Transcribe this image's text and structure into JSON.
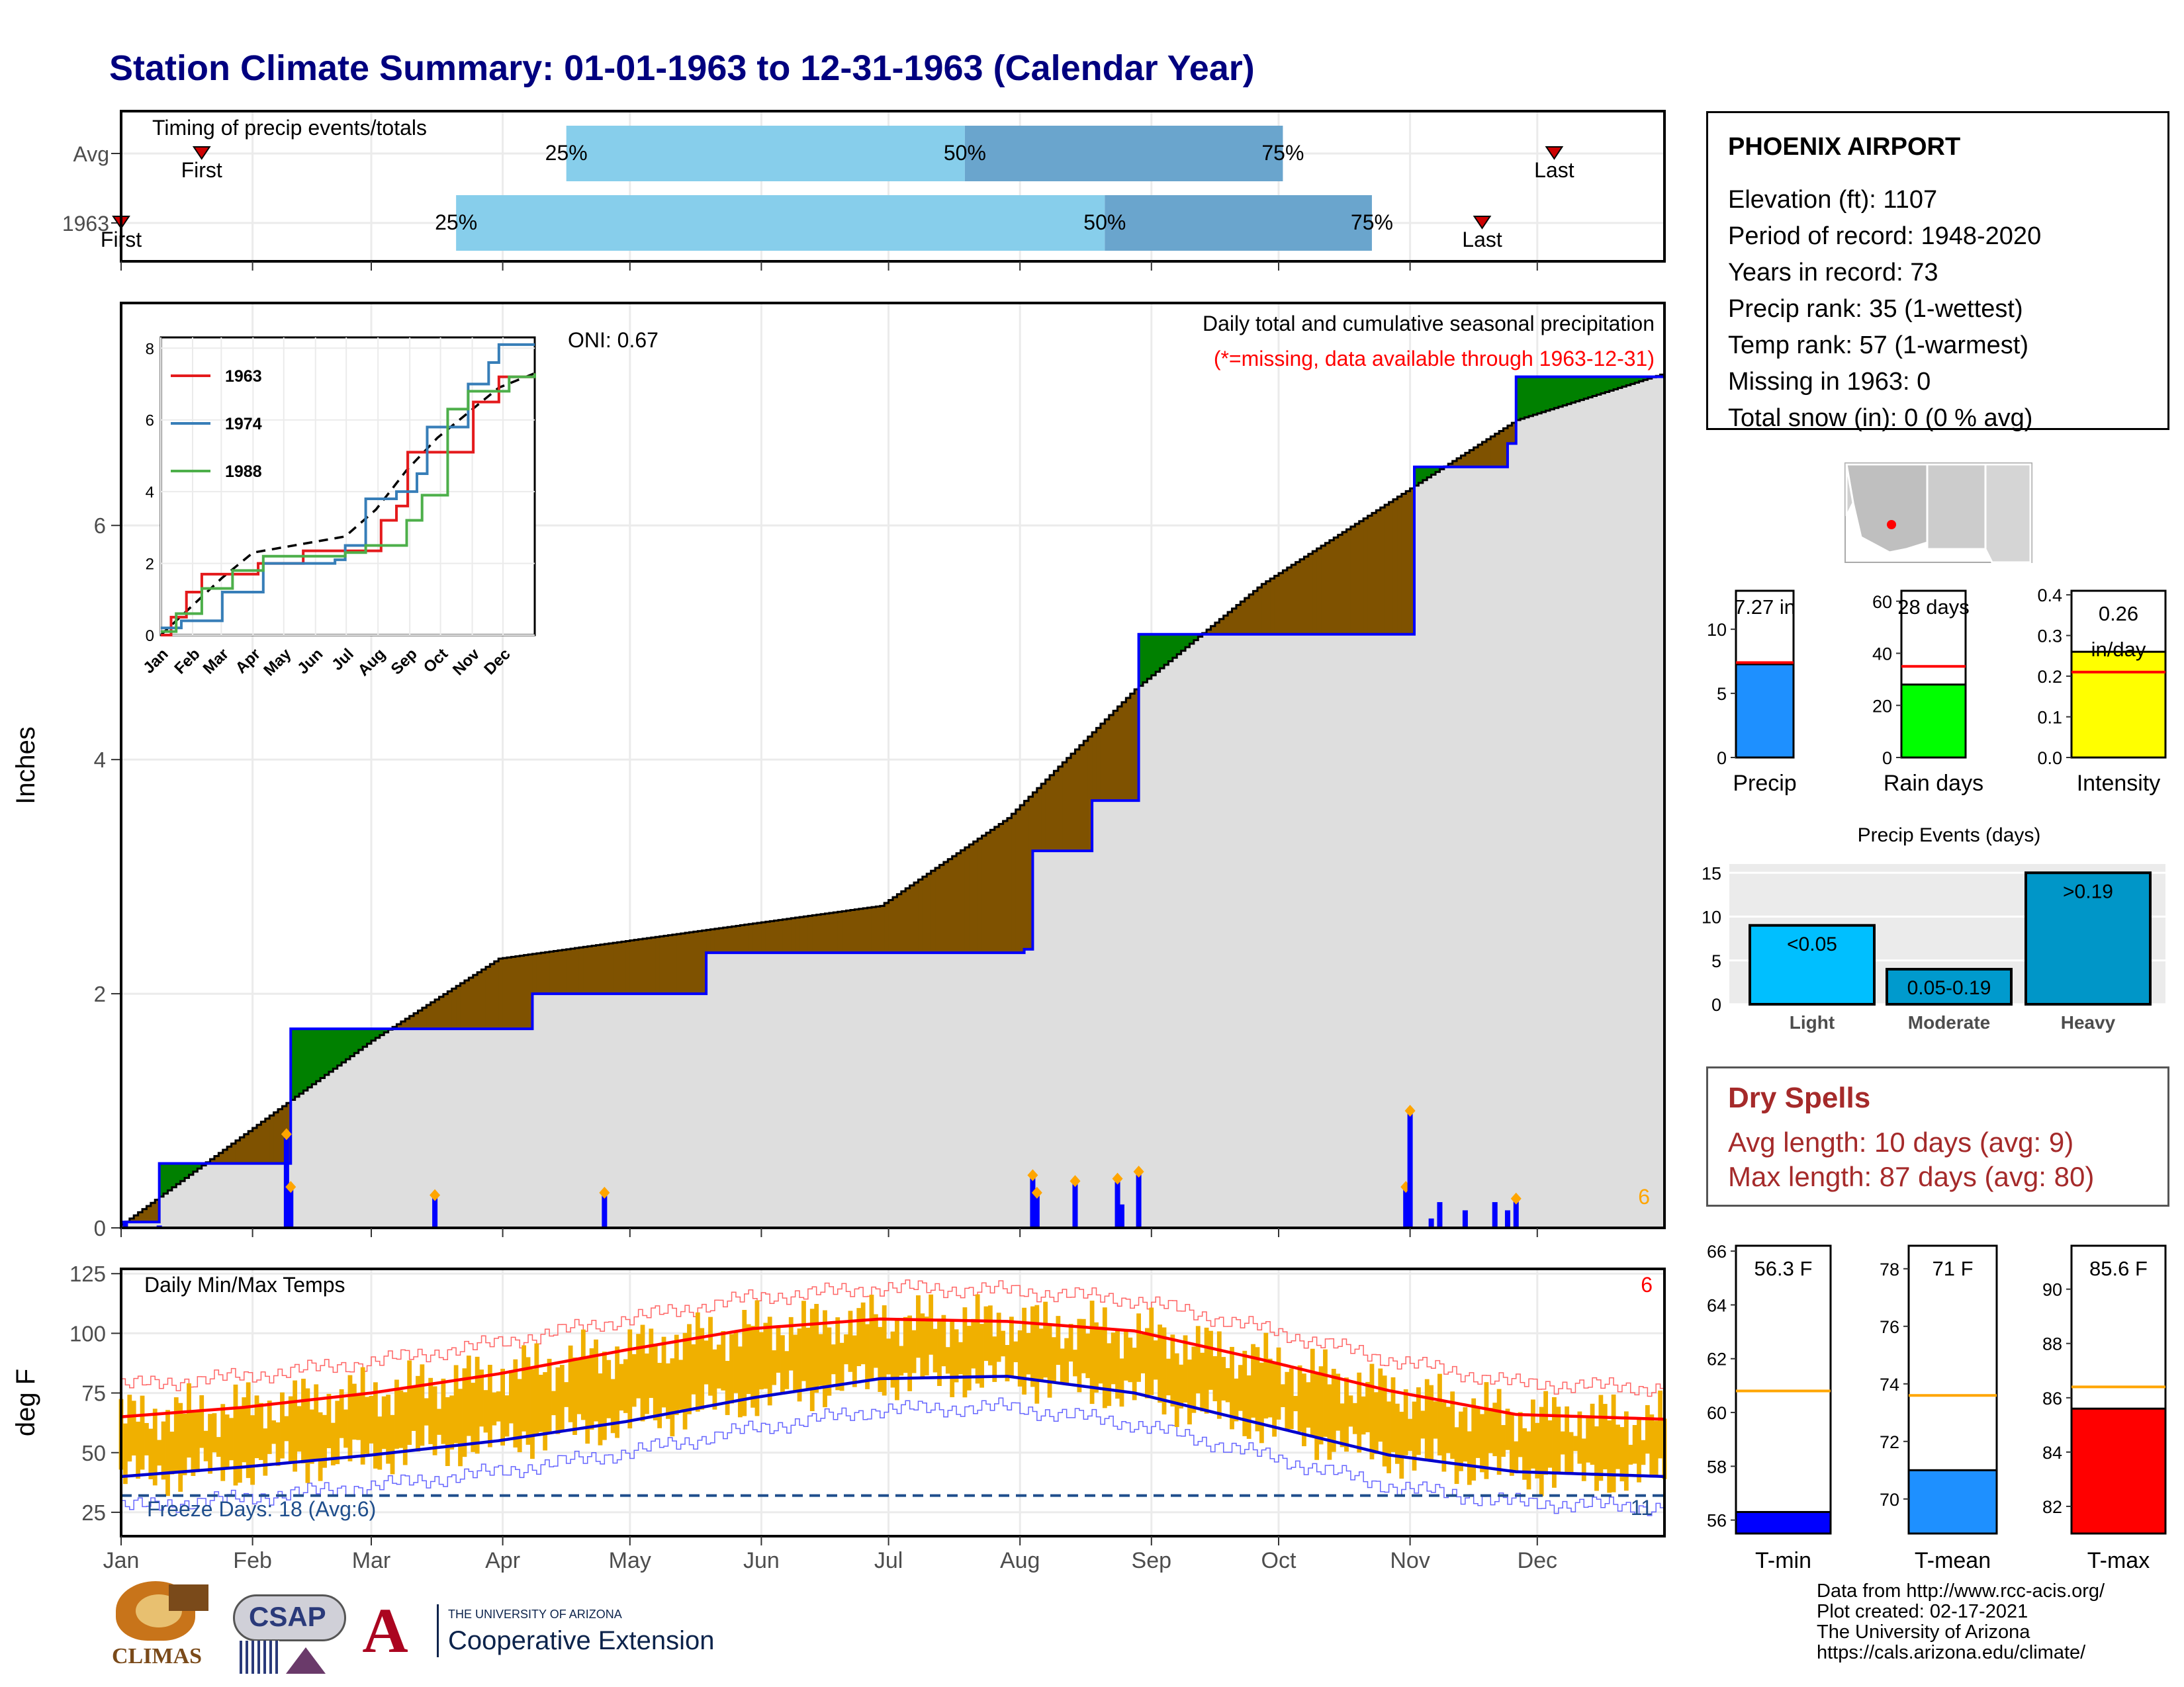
{
  "title": "Station Climate Summary: 01-01-1963 to 12-31-1963 (Calendar Year)",
  "colors": {
    "title": "#00007f",
    "above_normal": "#008000",
    "below_normal": "#7f5200",
    "normal_fill": "#dedede",
    "cumulative_line": "#0000ff",
    "quartile_light": "#87ceeb",
    "quartile_dark": "#6aa5cd",
    "tmax_normal": "#ff0000",
    "tmin_normal": "#0000cd",
    "daily_range": "#f0b000",
    "dry_spells": "#a52a2a"
  },
  "timing_panel": {
    "title": "Timing of precip events/totals",
    "rows": [
      {
        "label": "Avg",
        "first_label": "First",
        "last_label": "Last",
        "first_doy": 20,
        "last_doy": 339,
        "q25_doy": 106,
        "q50_doy": 200,
        "q75_doy": 275
      },
      {
        "label": "1963",
        "first_label": "First",
        "last_label": "Last",
        "first_doy": 1,
        "last_doy": 322,
        "q25_doy": 80,
        "q50_doy": 233,
        "q75_doy": 296
      }
    ],
    "q_labels": [
      "25%",
      "50%",
      "75%"
    ]
  },
  "months": [
    "Jan",
    "Feb",
    "Mar",
    "Apr",
    "May",
    "Jun",
    "Jul",
    "Aug",
    "Sep",
    "Oct",
    "Nov",
    "Dec"
  ],
  "precip_panel": {
    "ylabel": "Inches",
    "yticks": [
      0,
      2,
      4,
      6
    ],
    "ylim": [
      0,
      7.9
    ],
    "header": "Daily total and cumulative seasonal precipitation",
    "subheader": "(*=missing, data available through 1963-12-31)",
    "oni": "ONI: 0.67",
    "corner_value": "6"
  },
  "inset": {
    "yticks": [
      "0",
      "2",
      "4",
      "6",
      "8"
    ],
    "months": [
      "Jan",
      "Feb",
      "Mar",
      "Apr",
      "May",
      "Jun",
      "Jul",
      "Aug",
      "Sep",
      "Oct",
      "Nov",
      "Dec"
    ],
    "legend": [
      {
        "name": "1963",
        "color": "#e41a1c"
      },
      {
        "name": "1974",
        "color": "#377eb8"
      },
      {
        "name": "1988",
        "color": "#4daf4a"
      }
    ]
  },
  "temp_panel": {
    "title": "Daily Min/Max Temps",
    "ylabel": "deg F",
    "yticks": [
      25,
      50,
      75,
      100,
      125
    ],
    "ylim": [
      15,
      127
    ],
    "freeze_text": "Freeze Days: 18 (Avg:6)",
    "right_top": "6",
    "right_bottom": "11"
  },
  "info": {
    "station": "PHOENIX AIRPORT",
    "lines": [
      "Elevation (ft): 1107",
      "Period of record: 1948-2020",
      "Years in record: 73",
      "Precip rank: 35 (1-wettest)",
      "Temp rank: 57 (1-warmest)",
      "Missing in 1963: 0",
      "Total snow (in): 0 (0 % avg)"
    ]
  },
  "summary_bars": [
    {
      "name": "Precip",
      "value": 7.27,
      "label": "7.27 in",
      "normal": 7.4,
      "ylim": [
        0,
        13
      ],
      "yticks": [
        "0",
        "5",
        "10"
      ],
      "color": "#1e90ff"
    },
    {
      "name": "Rain days",
      "value": 28,
      "label": "28 days",
      "normal": 35,
      "ylim": [
        0,
        64
      ],
      "yticks": [
        "0",
        "20",
        "40",
        "60"
      ],
      "color": "#00ff00"
    },
    {
      "name": "Intensity",
      "value": 0.26,
      "label": "0.26 in/day",
      "normal": 0.21,
      "ylim": [
        0,
        0.41
      ],
      "yticks": [
        "0.0",
        "0.1",
        "0.2",
        "0.3",
        "0.4"
      ],
      "color": "#ffff00"
    }
  ],
  "precip_events": {
    "title": "Precip Events (days)",
    "yticks": [
      0,
      5,
      10,
      15
    ],
    "ylim": [
      0,
      16
    ],
    "bars": [
      {
        "name": "Light",
        "value": 9,
        "label": "<0.05",
        "color": "#00bfff"
      },
      {
        "name": "Moderate",
        "value": 4,
        "label": "0.05-0.19",
        "color": "#009acd"
      },
      {
        "name": "Heavy",
        "value": 15,
        "label": ">0.19",
        "color": "#0096c8"
      }
    ]
  },
  "dry_spells": {
    "title": "Dry Spells",
    "avg_line": "Avg length: 10 days (avg: 9)",
    "max_line": "Max length: 87 days (avg: 80)"
  },
  "temp_bars": [
    {
      "name": "T-min",
      "value": 56.3,
      "label": "56.3 F",
      "normal": 60.8,
      "ylim": [
        55.5,
        66.2
      ],
      "yticks": [
        56,
        58,
        60,
        62,
        64,
        66
      ],
      "color": "#0000ff"
    },
    {
      "name": "T-mean",
      "value": 71,
      "label": "71 F",
      "normal": 73.6,
      "ylim": [
        68.8,
        78.8
      ],
      "yticks": [
        70,
        72,
        74,
        76,
        78
      ],
      "color": "#1e90ff"
    },
    {
      "name": "T-max",
      "value": 85.6,
      "label": "85.6 F",
      "normal": 86.4,
      "ylim": [
        81,
        91.6
      ],
      "yticks": [
        82,
        84,
        86,
        88,
        90
      ],
      "color": "#ff0000"
    }
  ],
  "credits": [
    "Data from http://www.rcc-acis.org/",
    "Plot created: 02-17-2021",
    "The University of Arizona",
    "https://cals.arizona.edu/climate/"
  ],
  "logos": {
    "climas": "CLIMAS",
    "csap": "CSAP",
    "ua_top": "THE UNIVERSITY OF ARIZONA",
    "ua_bottom": "Cooperative Extension"
  },
  "chart_data": [
    {
      "type": "area",
      "title": "Daily total and cumulative seasonal precipitation",
      "ylabel": "Inches",
      "ylim": [
        0,
        7.9
      ],
      "series": [
        {
          "name": "1963",
          "x": [
            1,
            10,
            40,
            41,
            78,
            98,
            139,
            214,
            216,
            220,
            230,
            241,
            305,
            306,
            328,
            330,
            365
          ],
          "values": [
            0.05,
            0.55,
            0.55,
            1.7,
            1.7,
            2.0,
            2.35,
            2.38,
            3.22,
            3.22,
            3.65,
            5.07,
            5.07,
            6.5,
            6.7,
            7.27,
            7.27
          ]
        }
      ],
      "daily_precip": {
        "x": [
          2,
          10,
          40,
          41,
          75,
          115,
          202,
          216,
          217,
          226,
          236,
          237,
          241,
          274,
          304,
          305,
          306,
          310,
          312,
          318,
          325,
          328,
          330
        ],
        "values": [
          0.05,
          0.02,
          0.8,
          0.35,
          0.28,
          0.3,
          0.01,
          0.45,
          0.3,
          0.4,
          0.42,
          0.2,
          0.48,
          0.01,
          0.35,
          1.0,
          0.01,
          0.08,
          0.22,
          0.15,
          0.22,
          0.15,
          0.25
        ]
      },
      "xlabels": [
        "Jan",
        "Feb",
        "Mar",
        "Apr",
        "May",
        "Jun",
        "Jul",
        "Aug",
        "Sep",
        "Oct",
        "Nov",
        "Dec"
      ]
    },
    {
      "type": "line",
      "title": "",
      "yticks": [
        0,
        2,
        4,
        6,
        8
      ],
      "series": [
        {
          "name": "1963",
          "x": [
            0,
            10,
            25,
            40,
            41,
            75,
            95,
            139,
            215,
            220,
            230,
            241,
            305,
            330,
            365
          ],
          "values": [
            0,
            0.5,
            1.2,
            1.7,
            1.7,
            1.7,
            2.0,
            2.35,
            3.2,
            3.2,
            3.6,
            5.1,
            6.5,
            7.2,
            7.3
          ]
        },
        {
          "name": "1974",
          "x": [
            0,
            20,
            60,
            100,
            170,
            180,
            200,
            230,
            250,
            260,
            300,
            320,
            330,
            365
          ],
          "values": [
            0.2,
            0.4,
            1.2,
            2.0,
            2.1,
            2.5,
            3.8,
            4.0,
            4.5,
            5.8,
            7.0,
            7.6,
            8.1,
            8.1
          ]
        },
        {
          "name": "1988",
          "x": [
            0,
            15,
            40,
            70,
            100,
            180,
            200,
            240,
            255,
            280,
            300,
            340,
            365
          ],
          "values": [
            0.1,
            0.6,
            1.3,
            1.8,
            2.2,
            2.3,
            2.5,
            3.2,
            3.9,
            6.3,
            6.8,
            7.2,
            7.3
          ]
        }
      ],
      "normal": {
        "x": [
          0,
          30,
          60,
          90,
          120,
          150,
          180,
          210,
          240,
          270,
          300,
          330,
          365
        ],
        "values": [
          0,
          0.8,
          1.6,
          2.3,
          2.45,
          2.6,
          2.75,
          3.5,
          4.6,
          5.5,
          6.2,
          6.9,
          7.3
        ]
      }
    },
    {
      "type": "line",
      "title": "Daily Min/Max Temps",
      "ylabel": "deg F",
      "ylim": [
        15,
        127
      ],
      "series": [
        {
          "name": "Normal max",
          "x": [
            1,
            30,
            60,
            90,
            120,
            150,
            180,
            210,
            240,
            270,
            300,
            330,
            365
          ],
          "values": [
            65,
            69,
            75,
            83,
            93,
            102,
            106,
            105,
            101,
            89,
            76,
            66,
            64
          ]
        },
        {
          "name": "Normal min",
          "x": [
            1,
            30,
            60,
            90,
            120,
            150,
            180,
            210,
            240,
            270,
            300,
            330,
            365
          ],
          "values": [
            40,
            44,
            49,
            55,
            63,
            73,
            81,
            82,
            75,
            62,
            49,
            42,
            40
          ]
        }
      ],
      "freeze_threshold": 32
    },
    {
      "type": "bar",
      "categories": [
        "Precip",
        "Rain days",
        "Intensity"
      ],
      "values": [
        7.27,
        28,
        0.26
      ]
    },
    {
      "type": "bar",
      "title": "Precip Events (days)",
      "categories": [
        "Light",
        "Moderate",
        "Heavy"
      ],
      "values": [
        9,
        4,
        15
      ]
    },
    {
      "type": "bar",
      "categories": [
        "T-min",
        "T-mean",
        "T-max"
      ],
      "values": [
        56.3,
        71,
        85.6
      ]
    }
  ]
}
